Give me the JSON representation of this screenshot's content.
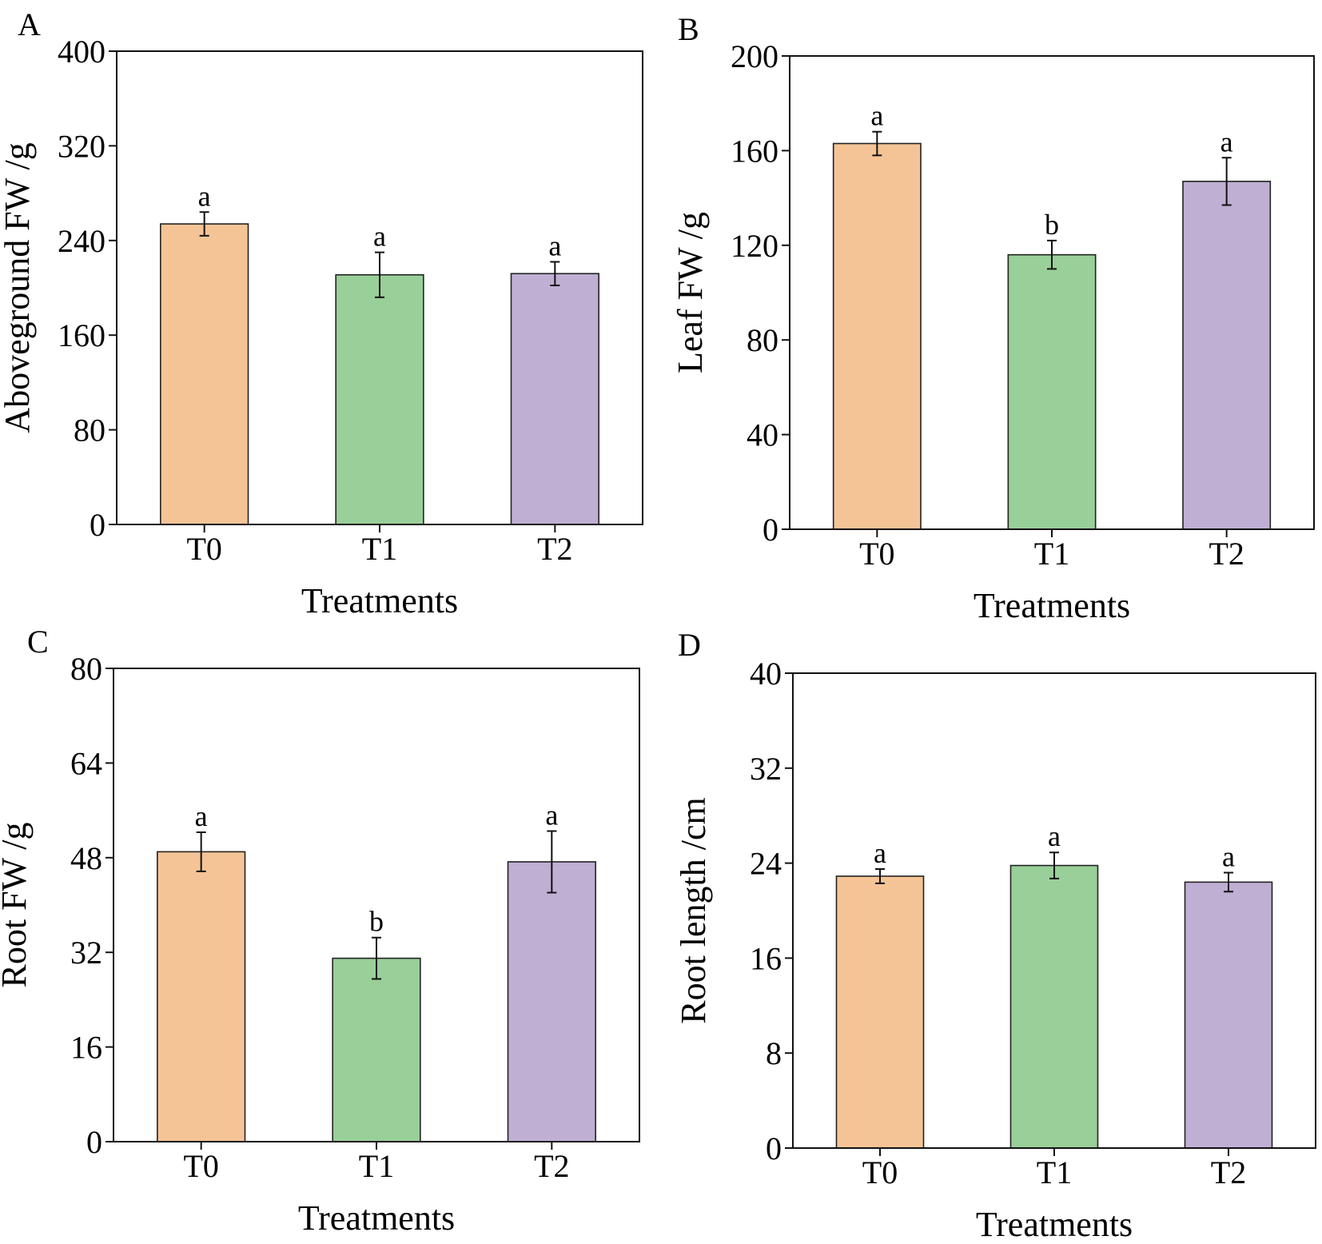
{
  "figure": {
    "colors": {
      "T0": "#F5C496",
      "T1": "#99CF98",
      "T2": "#BFAFD3",
      "stroke": "#222222"
    }
  },
  "chart_data": [
    {
      "panel": "A",
      "type": "bar",
      "categories": [
        "T0",
        "T1",
        "T2"
      ],
      "values": [
        254,
        211,
        212
      ],
      "errors": [
        10,
        19,
        10
      ],
      "significance": [
        "a",
        "a",
        "a"
      ],
      "xlabel": "Treatments",
      "ylabel": "Aboveground FW /g",
      "ylim": [
        0,
        400
      ],
      "yticks": [
        0,
        80,
        160,
        240,
        320,
        400
      ]
    },
    {
      "panel": "B",
      "type": "bar",
      "categories": [
        "T0",
        "T1",
        "T2"
      ],
      "values": [
        163,
        116,
        147
      ],
      "errors": [
        5,
        6,
        10
      ],
      "significance": [
        "a",
        "b",
        "a"
      ],
      "xlabel": "Treatments",
      "ylabel": "Leaf FW /g",
      "ylim": [
        0,
        200
      ],
      "yticks": [
        0,
        40,
        80,
        120,
        160,
        200
      ]
    },
    {
      "panel": "C",
      "type": "bar",
      "categories": [
        "T0",
        "T1",
        "T2"
      ],
      "values": [
        49,
        31,
        47.3
      ],
      "errors": [
        3.3,
        3.5,
        5.2
      ],
      "significance": [
        "a",
        "b",
        "a"
      ],
      "xlabel": "Treatments",
      "ylabel": "Root FW /g",
      "ylim": [
        0,
        80
      ],
      "yticks": [
        0,
        16,
        32,
        48,
        64,
        80
      ]
    },
    {
      "panel": "D",
      "type": "bar",
      "categories": [
        "T0",
        "T1",
        "T2"
      ],
      "values": [
        22.9,
        23.8,
        22.4
      ],
      "errors": [
        0.6,
        1.1,
        0.8
      ],
      "significance": [
        "a",
        "a",
        "a"
      ],
      "xlabel": "Treatments",
      "ylabel": "Root length /cm",
      "ylim": [
        0,
        40
      ],
      "yticks": [
        0,
        8,
        16,
        24,
        32,
        40
      ]
    }
  ]
}
